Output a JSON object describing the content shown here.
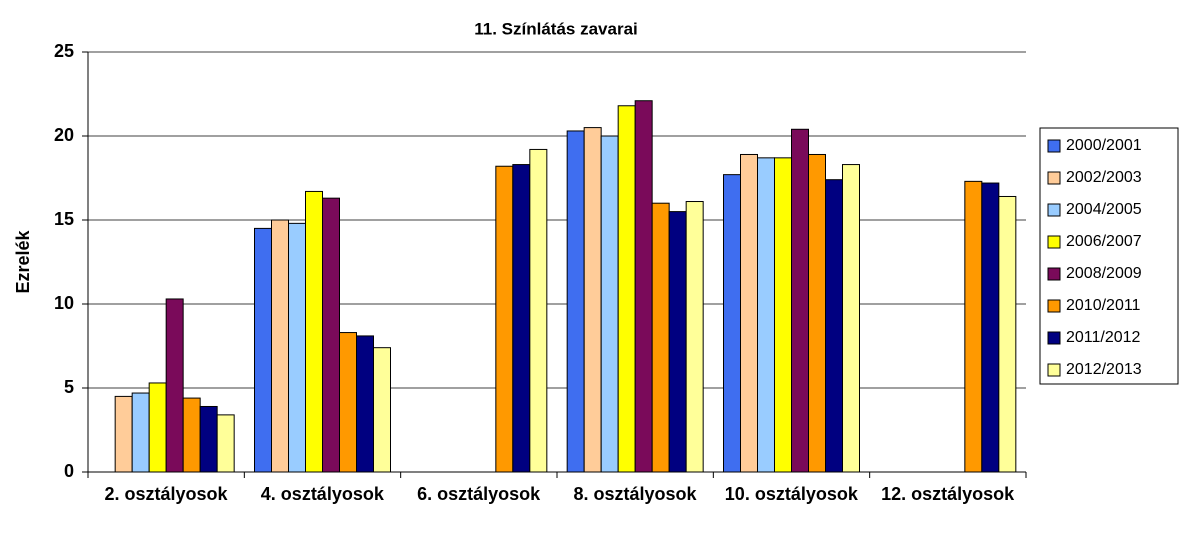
{
  "chart_data": {
    "type": "bar",
    "title": "11. Színlátás zavarai",
    "y_label": "Ezrelék",
    "categories": [
      "2. osztályosok",
      "4. osztályosok",
      "6. osztályosok",
      "8. osztályosok",
      "10. osztályosok",
      "12. osztályosok"
    ],
    "series": [
      {
        "name": "2000/2001",
        "color": "#3f6ef0",
        "values": [
          null,
          14.5,
          null,
          20.3,
          17.7,
          null
        ]
      },
      {
        "name": "2002/2003",
        "color": "#ffcc99",
        "values": [
          4.5,
          15.0,
          null,
          20.5,
          18.9,
          null
        ]
      },
      {
        "name": "2004/2005",
        "color": "#99ccff",
        "values": [
          4.7,
          14.8,
          null,
          20.0,
          18.7,
          null
        ]
      },
      {
        "name": "2006/2007",
        "color": "#ffff00",
        "values": [
          5.3,
          16.7,
          null,
          21.8,
          18.7,
          null
        ]
      },
      {
        "name": "2008/2009",
        "color": "#7a0a5a",
        "values": [
          10.3,
          16.3,
          null,
          22.1,
          20.4,
          null
        ]
      },
      {
        "name": "2010/2011",
        "color": "#ff9900",
        "values": [
          4.4,
          8.3,
          18.2,
          16.0,
          18.9,
          17.3
        ]
      },
      {
        "name": "2011/2012",
        "color": "#000080",
        "values": [
          3.9,
          8.1,
          18.3,
          15.5,
          17.4,
          17.2
        ]
      },
      {
        "name": "2012/2013",
        "color": "#ffff99",
        "values": [
          3.4,
          7.4,
          19.2,
          16.1,
          18.3,
          16.4
        ]
      }
    ],
    "ylim": [
      0,
      25
    ],
    "yticks": [
      0,
      5,
      10,
      15,
      20,
      25
    ],
    "grid": true,
    "legend": "right"
  }
}
